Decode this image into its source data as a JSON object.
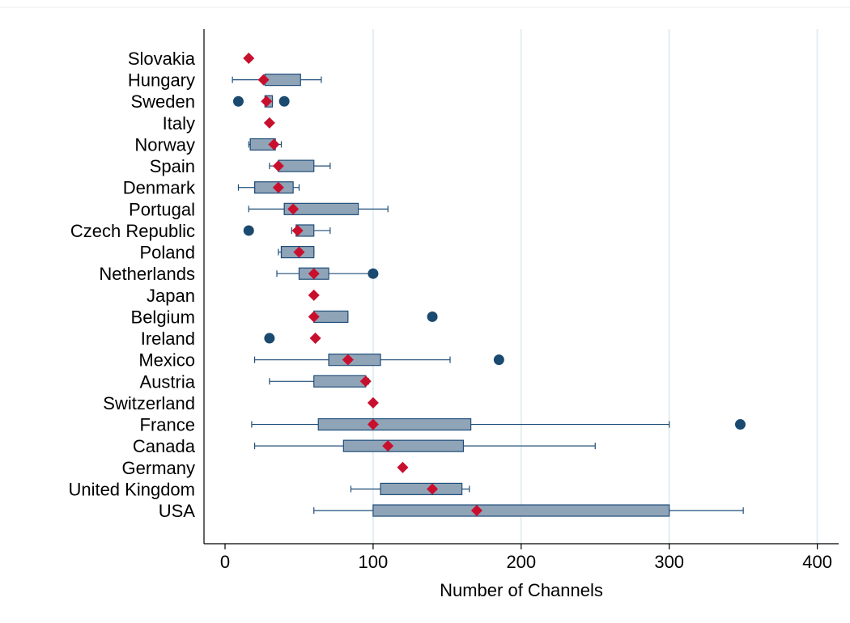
{
  "chart_data": {
    "type": "box",
    "orientation": "horizontal",
    "xlabel": "Number of Channels",
    "xlim": [
      -15,
      415
    ],
    "xticks": [
      0,
      100,
      200,
      300,
      400
    ],
    "grid": true,
    "legend": "none",
    "colors": {
      "box_fill": "#90a4b8",
      "box_stroke": "#1f4e79",
      "outlier": "#1a4a70",
      "mean_marker": "#c8102e",
      "grid": "#e2eef2"
    },
    "categories": [
      {
        "name": "Slovakia",
        "box": null,
        "mean": 16,
        "outliers": []
      },
      {
        "name": "Hungary",
        "box": {
          "min": 5,
          "q1": 27,
          "median": 27,
          "q3": 51,
          "max": 65
        },
        "mean": 26,
        "outliers": []
      },
      {
        "name": "Sweden",
        "box": {
          "min": 27,
          "q1": 27,
          "median": 27,
          "q3": 32,
          "max": 32
        },
        "mean": 28,
        "outliers": [
          9,
          40
        ]
      },
      {
        "name": "Italy",
        "box": null,
        "mean": 30,
        "outliers": []
      },
      {
        "name": "Norway",
        "box": {
          "min": 16,
          "q1": 17,
          "median": 17,
          "q3": 34,
          "max": 38
        },
        "mean": 33,
        "outliers": []
      },
      {
        "name": "Spain",
        "box": {
          "min": 30,
          "q1": 36,
          "median": 36,
          "q3": 60,
          "max": 71
        },
        "mean": 36,
        "outliers": []
      },
      {
        "name": "Denmark",
        "box": {
          "min": 9,
          "q1": 20,
          "median": 20,
          "q3": 46,
          "max": 50
        },
        "mean": 36,
        "outliers": []
      },
      {
        "name": "Portugal",
        "box": {
          "min": 16,
          "q1": 40,
          "median": 40,
          "q3": 90,
          "max": 110
        },
        "mean": 46,
        "outliers": []
      },
      {
        "name": "Czech Republic",
        "box": {
          "min": 45,
          "q1": 48,
          "median": 48,
          "q3": 60,
          "max": 71
        },
        "mean": 49,
        "outliers": [
          16
        ]
      },
      {
        "name": "Poland",
        "box": {
          "min": 36,
          "q1": 38,
          "median": 38,
          "q3": 60,
          "max": 60
        },
        "mean": 50,
        "outliers": []
      },
      {
        "name": "Netherlands",
        "box": {
          "min": 35,
          "q1": 50,
          "median": 60,
          "q3": 70,
          "max": 100
        },
        "mean": 60,
        "outliers": [
          100
        ]
      },
      {
        "name": "Japan",
        "box": null,
        "mean": 60,
        "outliers": []
      },
      {
        "name": "Belgium",
        "box": {
          "min": 60,
          "q1": 60,
          "median": 60,
          "q3": 83,
          "max": 83
        },
        "mean": 60,
        "outliers": [
          140
        ]
      },
      {
        "name": "Ireland",
        "box": null,
        "mean": 61,
        "outliers": [
          30
        ]
      },
      {
        "name": "Mexico",
        "box": {
          "min": 20,
          "q1": 70,
          "median": 83,
          "q3": 105,
          "max": 152
        },
        "mean": 83,
        "outliers": [
          185
        ]
      },
      {
        "name": "Austria",
        "box": {
          "min": 30,
          "q1": 60,
          "median": 95,
          "q3": 95,
          "max": 97
        },
        "mean": 95,
        "outliers": []
      },
      {
        "name": "Switzerland",
        "box": null,
        "mean": 100,
        "outliers": []
      },
      {
        "name": "France",
        "box": {
          "min": 18,
          "q1": 63,
          "median": 100,
          "q3": 166,
          "max": 300
        },
        "mean": 100,
        "outliers": [
          348
        ]
      },
      {
        "name": "Canada",
        "box": {
          "min": 20,
          "q1": 80,
          "median": 110,
          "q3": 161,
          "max": 250
        },
        "mean": 110,
        "outliers": []
      },
      {
        "name": "Germany",
        "box": null,
        "mean": 120,
        "outliers": []
      },
      {
        "name": "United Kingdom",
        "box": {
          "min": 85,
          "q1": 105,
          "median": 140,
          "q3": 160,
          "max": 165
        },
        "mean": 140,
        "outliers": []
      },
      {
        "name": "USA",
        "box": {
          "min": 60,
          "q1": 100,
          "median": 170,
          "q3": 300,
          "max": 350
        },
        "mean": 170,
        "outliers": []
      }
    ]
  }
}
